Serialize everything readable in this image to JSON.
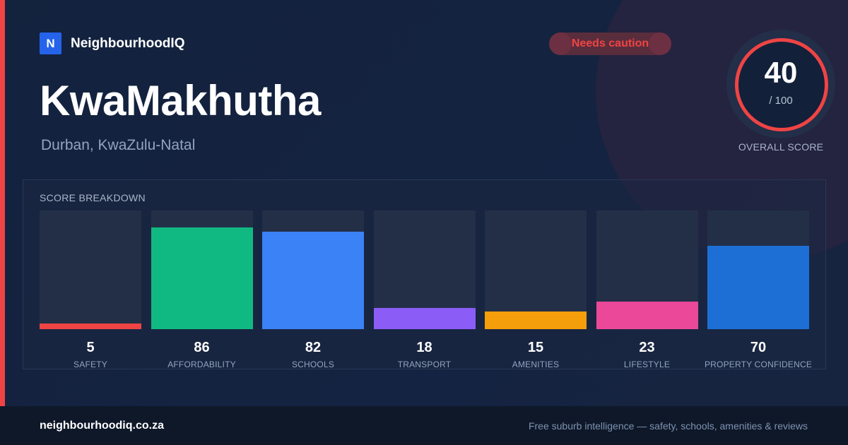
{
  "brand": {
    "logo_letter": "N",
    "name": "NeighbourhoodIQ"
  },
  "suburb": {
    "name": "KwaMakhutha",
    "location": "Durban, KwaZulu-Natal"
  },
  "badge": {
    "label": "Needs caution",
    "color": "#ef4444"
  },
  "overall": {
    "score": "40",
    "max": "/ 100",
    "label": "OVERALL SCORE",
    "ring_color": "#ef4444",
    "score_fraction": 0.4
  },
  "breakdown": {
    "title": "SCORE BREAKDOWN",
    "items": [
      {
        "value": "5",
        "label": "SAFETY",
        "score": 5,
        "color": "#ef4444"
      },
      {
        "value": "86",
        "label": "AFFORDABILITY",
        "score": 86,
        "color": "#10b981"
      },
      {
        "value": "82",
        "label": "SCHOOLS",
        "score": 82,
        "color": "#3b82f6"
      },
      {
        "value": "18",
        "label": "TRANSPORT",
        "score": 18,
        "color": "#8b5cf6"
      },
      {
        "value": "15",
        "label": "AMENITIES",
        "score": 15,
        "color": "#f59e0b"
      },
      {
        "value": "23",
        "label": "LIFESTYLE",
        "score": 23,
        "color": "#ec4899"
      },
      {
        "value": "70",
        "label": "PROPERTY CONFIDENCE",
        "score": 70,
        "color": "#1d6fd6"
      }
    ]
  },
  "footer": {
    "domain": "neighbourhoodiq.co.za",
    "tagline": "Free suburb intelligence — safety, schools, amenities & reviews"
  }
}
